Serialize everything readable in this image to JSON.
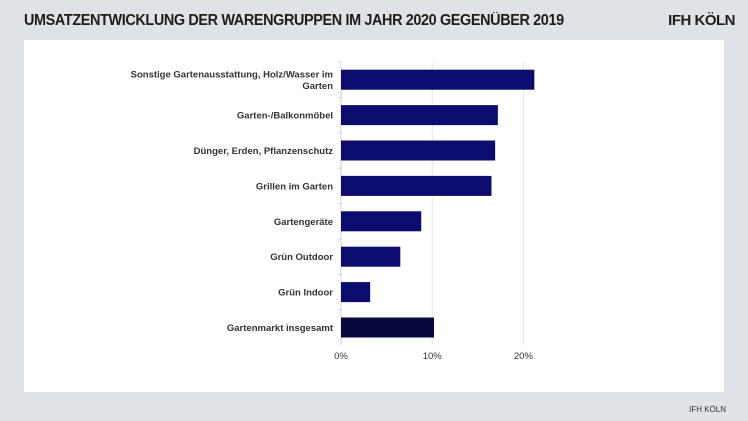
{
  "header": {
    "title": "UMSATZENTWICKLUNG DER WARENGRUPPEN IM JAHR 2020 GEGENÜBER 2019",
    "brand": "IFH KÖLN"
  },
  "footer": {
    "source": "IFH KÖLN"
  },
  "chart_data": {
    "type": "bar",
    "orientation": "horizontal",
    "categories": [
      [
        "Sonstige Gartenausstattung, Holz/Wasser im",
        "Garten"
      ],
      [
        "Garten-/Balkonmöbel"
      ],
      [
        "Dünger, Erden, Pflanzenschutz"
      ],
      [
        "Grillen im Garten"
      ],
      [
        "Gartengeräte"
      ],
      [
        "Grün Outdoor"
      ],
      [
        "Grün Indoor"
      ],
      [
        "Gartenmarkt insgesamt"
      ]
    ],
    "values": [
      21.2,
      17.2,
      16.9,
      16.5,
      8.8,
      6.5,
      3.2,
      10.2
    ],
    "unit": "%",
    "xlim": [
      0,
      22
    ],
    "xticks": [
      0,
      10,
      20
    ],
    "xtick_labels": [
      "0%",
      "10%",
      "20%"
    ],
    "grid": "vertical",
    "colors": {
      "bar": "#0c0c6e",
      "total_bar": "#08083c"
    }
  }
}
